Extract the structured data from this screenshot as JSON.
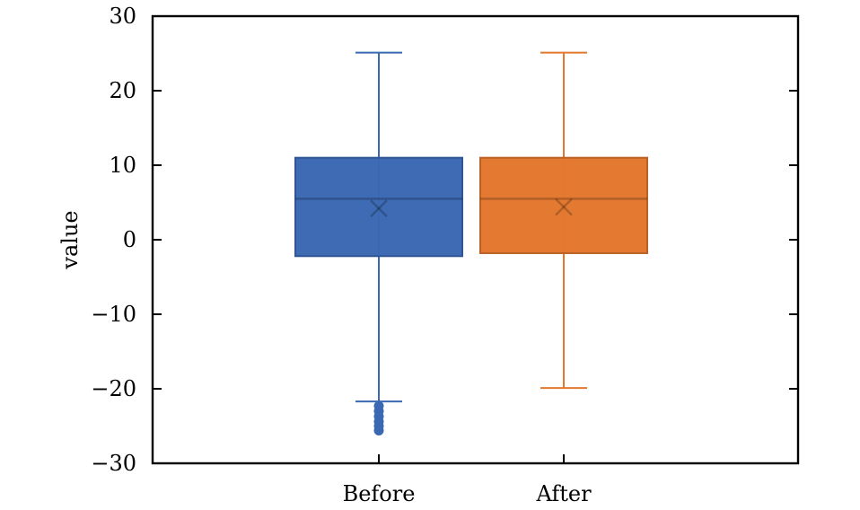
{
  "chart_data": {
    "type": "box",
    "title": "",
    "xlabel": "",
    "ylabel": "value",
    "ylim": [
      -30,
      30
    ],
    "yticks": [
      -30,
      -20,
      -10,
      0,
      10,
      20,
      30
    ],
    "ytick_labels": [
      "−30",
      "−20",
      "−10",
      "0",
      "10",
      "20",
      "30"
    ],
    "categories": [
      "Before",
      "After"
    ],
    "grid": false,
    "legend": "none",
    "series": [
      {
        "category": "Before",
        "color": "#3a68b2",
        "whisker_low": -21.7,
        "q1": -2.2,
        "median": 5.5,
        "mean": 4.2,
        "q3": 11.0,
        "whisker_high": 25.1,
        "outliers": [
          -22.3,
          -23.0,
          -23.7,
          -24.4,
          -25.0,
          -25.6
        ]
      },
      {
        "category": "After",
        "color": "#e3772e",
        "whisker_low": -19.9,
        "q1": -1.8,
        "median": 5.5,
        "mean": 4.4,
        "q3": 11.0,
        "whisker_high": 25.1,
        "outliers": []
      }
    ]
  }
}
